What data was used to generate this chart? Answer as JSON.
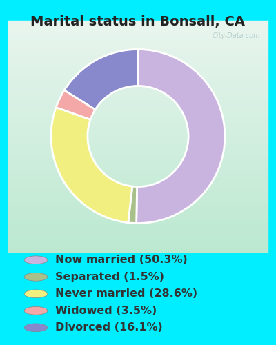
{
  "title": "Marital status in Bonsall, CA",
  "slices": [
    50.3,
    1.5,
    28.6,
    3.5,
    16.1
  ],
  "labels": [
    "Now married (50.3%)",
    "Separated (1.5%)",
    "Never married (28.6%)",
    "Widowed (3.5%)",
    "Divorced (16.1%)"
  ],
  "colors": [
    "#c9b4e0",
    "#a8c08a",
    "#f0ef80",
    "#f4a8a8",
    "#8888cc"
  ],
  "bg_color": "#00eeff",
  "chart_bg_top": "#dff0e8",
  "chart_bg_bottom": "#c8ede0",
  "title_fontsize": 14,
  "legend_fontsize": 11.5,
  "watermark": "City-Data.com",
  "donut_width": 0.42
}
